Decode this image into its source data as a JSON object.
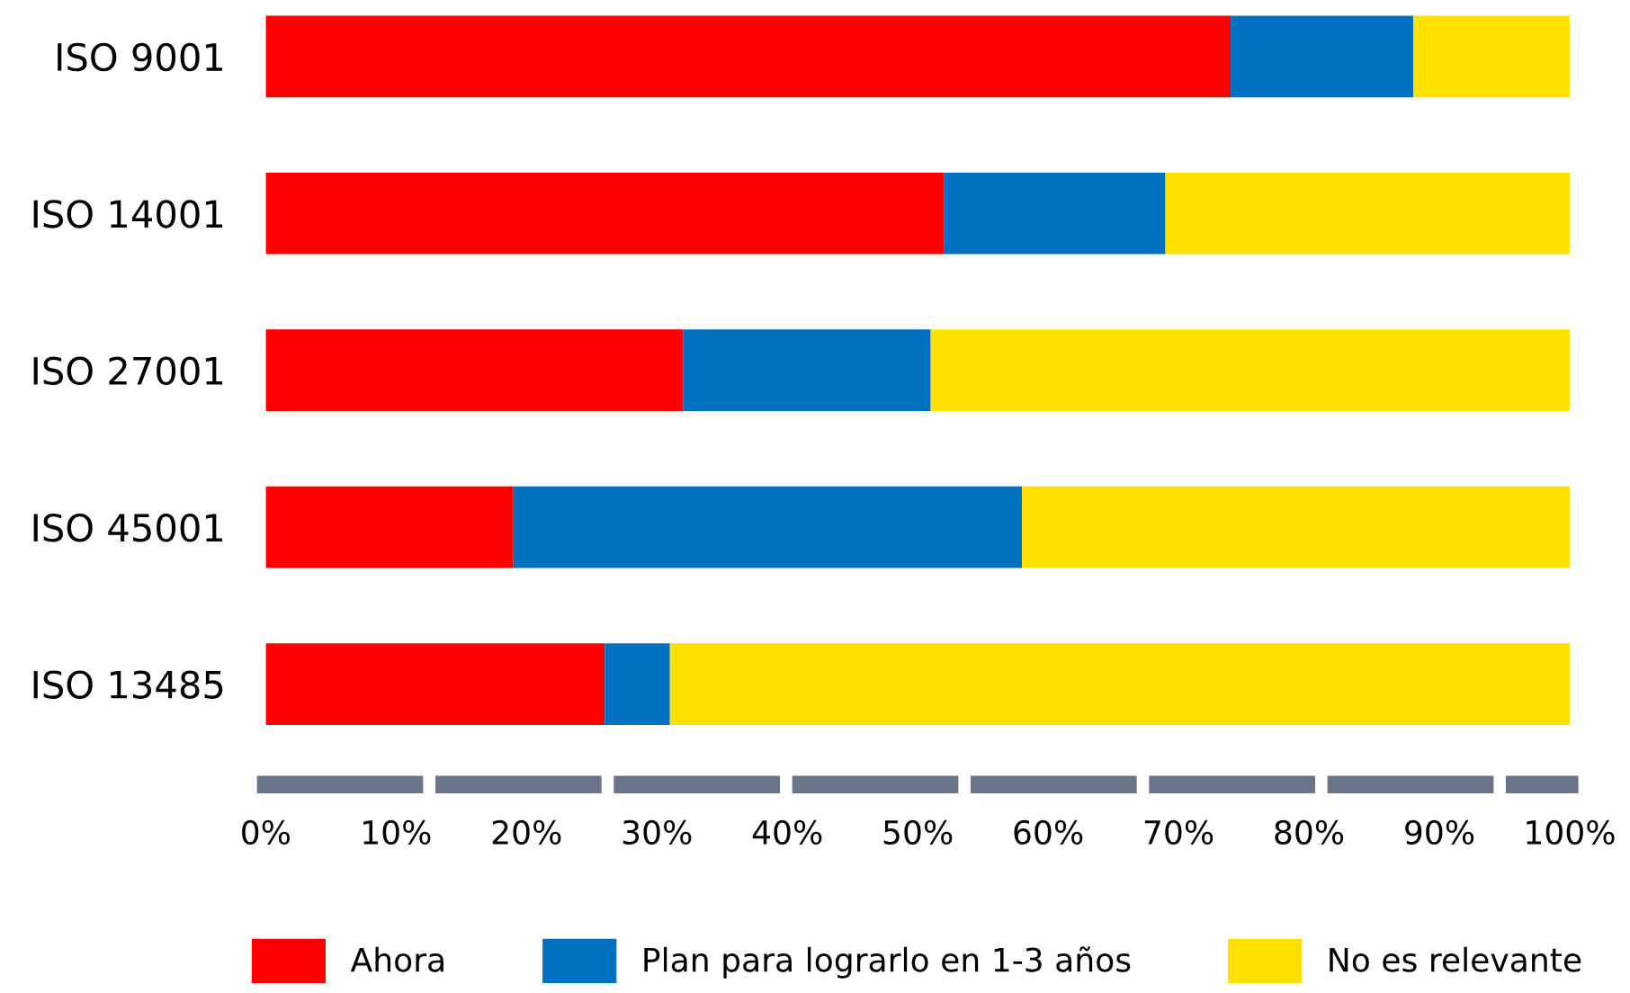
{
  "chart_data": {
    "type": "bar",
    "orientation": "horizontal",
    "stacked": true,
    "categories": [
      "ISO 9001",
      "ISO 14001",
      "ISO 27001",
      "ISO 45001",
      "ISO 13485"
    ],
    "series": [
      {
        "name": "Ahora",
        "color": "#ff0000",
        "values": [
          74,
          52,
          32,
          19,
          26
        ]
      },
      {
        "name": "Plan para lograrlo en 1-3 años",
        "color": "#0070c0",
        "values": [
          14,
          17,
          19,
          39,
          5
        ]
      },
      {
        "name": "No es relevante",
        "color": "#ffe000",
        "values": [
          12,
          31,
          49,
          42,
          69
        ]
      }
    ],
    "xlim": [
      0,
      100
    ],
    "xticks": [
      {
        "value": 0,
        "label": "0%"
      },
      {
        "value": 10,
        "label": "10%"
      },
      {
        "value": 20,
        "label": "20%"
      },
      {
        "value": 30,
        "label": "30%"
      },
      {
        "value": 40,
        "label": "40%"
      },
      {
        "value": 50,
        "label": "50%"
      },
      {
        "value": 60,
        "label": "60%"
      },
      {
        "value": 70,
        "label": "70%"
      },
      {
        "value": 80,
        "label": "80%"
      },
      {
        "value": 90,
        "label": "90%"
      },
      {
        "value": 100,
        "label": "100%"
      }
    ],
    "grid": false,
    "legend": "bottom"
  }
}
